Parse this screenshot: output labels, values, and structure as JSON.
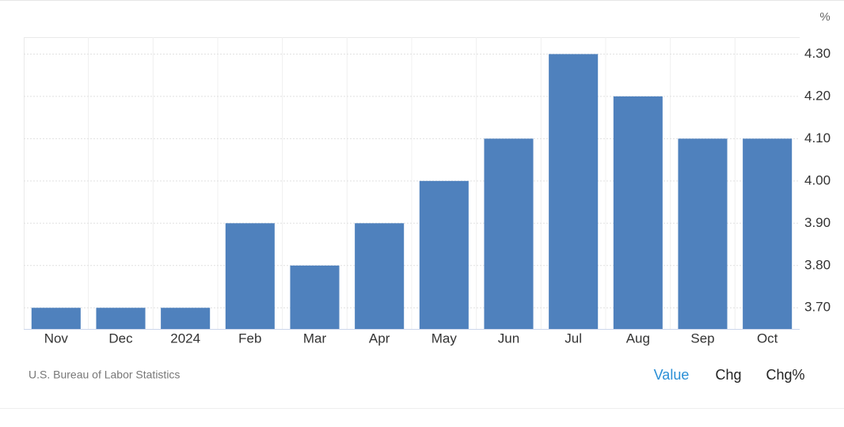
{
  "chart_data": {
    "type": "bar",
    "y_unit": "%",
    "categories": [
      "Nov",
      "Dec",
      "2024",
      "Feb",
      "Mar",
      "Apr",
      "May",
      "Jun",
      "Jul",
      "Aug",
      "Sep",
      "Oct"
    ],
    "values": [
      3.7,
      3.7,
      3.7,
      3.9,
      3.8,
      3.9,
      4.0,
      4.1,
      4.3,
      4.2,
      4.1,
      4.1
    ],
    "color": "#4f81bd",
    "ylim": [
      3.65,
      4.34
    ],
    "yticks": [
      {
        "value": 3.7,
        "label": "3.70"
      },
      {
        "value": 3.8,
        "label": "3.80"
      },
      {
        "value": 3.9,
        "label": "3.90"
      },
      {
        "value": 4.0,
        "label": "4.00"
      },
      {
        "value": 4.1,
        "label": "4.10"
      },
      {
        "value": 4.2,
        "label": "4.20"
      },
      {
        "value": 4.3,
        "label": "4.30"
      }
    ],
    "grid": true,
    "source": "U.S. Bureau of Labor Statistics",
    "buttons": [
      "Value",
      "Chg",
      "Chg%"
    ]
  }
}
